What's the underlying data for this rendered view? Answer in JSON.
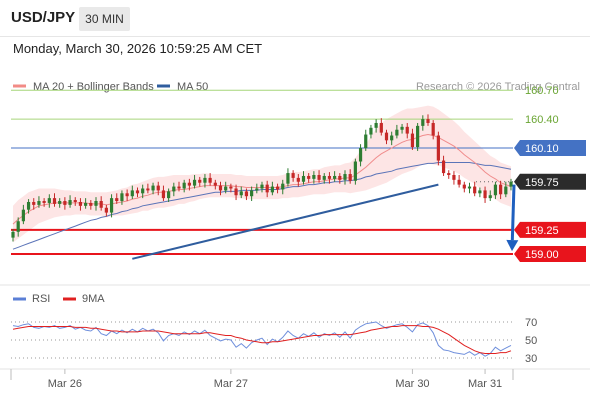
{
  "header": {
    "symbol": "USD/JPY",
    "timeframe": "30 MIN",
    "datetime": "Monday, March 30, 2026 10:59:25 AM CET"
  },
  "legend": {
    "items": [
      {
        "label": "MA 20 + Bollinger Bands",
        "color": "#f28b86"
      },
      {
        "label": "MA 50",
        "color": "#2f5d9e"
      }
    ],
    "credit": "Research © 2026 Trading Central"
  },
  "rsi_legend": {
    "items": [
      {
        "label": "RSI",
        "color": "#5b7fd6"
      },
      {
        "label": "9MA",
        "color": "#e02020"
      }
    ]
  },
  "colors": {
    "up_candle": "#2e7d32",
    "down_candle": "#c62828",
    "resistance_green": "#a6d57a",
    "pivot_blue": "#4472c4",
    "support_red": "#e8141c",
    "last_price": "#2b2b2b",
    "trendline": "#2f5d9e",
    "bollinger_fill": "#fde2e2",
    "ma50": "#5b74b8",
    "ma20": "#f08c8c"
  },
  "chart_data": [
    {
      "type": "candlestick",
      "x_ticks": [
        "Mar 26",
        "Mar 27",
        "Mar 30",
        "Mar 31"
      ],
      "ylim": [
        158.95,
        160.8
      ],
      "levels": [
        {
          "value": 160.7,
          "label": "160.70",
          "kind": "resistance"
        },
        {
          "value": 160.4,
          "label": "160.40",
          "kind": "resistance"
        },
        {
          "value": 160.1,
          "label": "160.10",
          "kind": "pivot"
        },
        {
          "value": 159.75,
          "label": "159.75",
          "kind": "last"
        },
        {
          "value": 159.25,
          "label": "159.25",
          "kind": "support"
        },
        {
          "value": 159.0,
          "label": "159.00",
          "kind": "support"
        }
      ],
      "closes": [
        159.23,
        159.34,
        159.46,
        159.54,
        159.51,
        159.55,
        159.53,
        159.58,
        159.52,
        159.55,
        159.51,
        159.56,
        159.54,
        159.5,
        159.53,
        159.5,
        159.55,
        159.48,
        159.43,
        159.58,
        159.55,
        159.63,
        159.6,
        159.66,
        159.63,
        159.68,
        159.66,
        159.71,
        159.66,
        159.58,
        159.65,
        159.7,
        159.68,
        159.74,
        159.71,
        159.77,
        159.74,
        159.79,
        159.74,
        159.71,
        159.66,
        159.7,
        159.68,
        159.61,
        159.65,
        159.6,
        159.66,
        159.68,
        159.72,
        159.64,
        159.7,
        159.67,
        159.73,
        159.84,
        159.79,
        159.75,
        159.81,
        159.78,
        159.82,
        159.77,
        159.81,
        159.78,
        159.81,
        159.77,
        159.83,
        159.76,
        159.96,
        160.1,
        160.24,
        160.31,
        160.36,
        160.26,
        160.18,
        160.23,
        160.29,
        160.32,
        160.25,
        160.11,
        160.33,
        160.4,
        160.36,
        160.23,
        159.97,
        159.84,
        159.82,
        159.77,
        159.72,
        159.68,
        159.7,
        159.63,
        159.66,
        159.58,
        159.61,
        159.72,
        159.62,
        159.7,
        159.75
      ],
      "ma20": [
        159.31,
        159.36,
        159.4,
        159.44,
        159.47,
        159.5,
        159.51,
        159.52,
        159.53,
        159.53,
        159.53,
        159.53,
        159.53,
        159.53,
        159.53,
        159.52,
        159.52,
        159.52,
        159.51,
        159.52,
        159.53,
        159.54,
        159.55,
        159.57,
        159.58,
        159.6,
        159.61,
        159.63,
        159.64,
        159.64,
        159.65,
        159.66,
        159.67,
        159.67,
        159.68,
        159.69,
        159.7,
        159.71,
        159.71,
        159.71,
        159.71,
        159.71,
        159.71,
        159.7,
        159.7,
        159.69,
        159.69,
        159.69,
        159.69,
        159.69,
        159.69,
        159.69,
        159.7,
        159.71,
        159.72,
        159.72,
        159.73,
        159.74,
        159.75,
        159.75,
        159.76,
        159.77,
        159.78,
        159.78,
        159.79,
        159.79,
        159.82,
        159.86,
        159.9,
        159.95,
        160.0,
        160.04,
        160.07,
        160.1,
        160.13,
        160.16,
        160.18,
        160.19,
        160.21,
        160.23,
        160.24,
        160.23,
        160.21,
        160.18,
        160.15,
        160.12,
        160.08,
        160.03,
        159.99,
        159.95,
        159.9,
        159.85,
        159.81,
        159.78,
        159.74,
        159.72,
        159.7
      ],
      "ma50": [
        159.05,
        159.07,
        159.09,
        159.11,
        159.13,
        159.15,
        159.17,
        159.19,
        159.21,
        159.23,
        159.25,
        159.27,
        159.29,
        159.31,
        159.33,
        159.35,
        159.36,
        159.38,
        159.39,
        159.41,
        159.42,
        159.44,
        159.45,
        159.47,
        159.48,
        159.5,
        159.51,
        159.52,
        159.53,
        159.54,
        159.55,
        159.56,
        159.57,
        159.58,
        159.59,
        159.6,
        159.61,
        159.62,
        159.63,
        159.64,
        159.64,
        159.65,
        159.65,
        159.65,
        159.66,
        159.66,
        159.66,
        159.66,
        159.67,
        159.67,
        159.67,
        159.67,
        159.68,
        159.69,
        159.7,
        159.7,
        159.71,
        159.72,
        159.72,
        159.73,
        159.74,
        159.74,
        159.75,
        159.75,
        159.76,
        159.76,
        159.77,
        159.78,
        159.8,
        159.81,
        159.83,
        159.84,
        159.85,
        159.86,
        159.88,
        159.89,
        159.9,
        159.91,
        159.92,
        159.93,
        159.94,
        159.94,
        159.95,
        159.95,
        159.95,
        159.95,
        159.95,
        159.95,
        159.95,
        159.94,
        159.93,
        159.92,
        159.92,
        159.91,
        159.9,
        159.89,
        159.88
      ],
      "bb_width": [
        0.19,
        0.2,
        0.2,
        0.2,
        0.19,
        0.18,
        0.17,
        0.16,
        0.15,
        0.14,
        0.13,
        0.13,
        0.12,
        0.12,
        0.12,
        0.12,
        0.12,
        0.12,
        0.13,
        0.13,
        0.13,
        0.14,
        0.14,
        0.15,
        0.15,
        0.15,
        0.16,
        0.16,
        0.16,
        0.16,
        0.16,
        0.16,
        0.15,
        0.15,
        0.14,
        0.14,
        0.13,
        0.13,
        0.12,
        0.12,
        0.12,
        0.12,
        0.12,
        0.12,
        0.12,
        0.12,
        0.12,
        0.12,
        0.12,
        0.12,
        0.12,
        0.12,
        0.12,
        0.13,
        0.13,
        0.13,
        0.13,
        0.13,
        0.13,
        0.13,
        0.14,
        0.14,
        0.14,
        0.14,
        0.15,
        0.16,
        0.18,
        0.21,
        0.24,
        0.27,
        0.3,
        0.32,
        0.33,
        0.33,
        0.33,
        0.33,
        0.33,
        0.32,
        0.31,
        0.3,
        0.3,
        0.3,
        0.29,
        0.28,
        0.27,
        0.26,
        0.25,
        0.24,
        0.23,
        0.22,
        0.22,
        0.22,
        0.21,
        0.21,
        0.21,
        0.21,
        0.21
      ],
      "forecast_arrow": {
        "from": 159.72,
        "to": 159.03
      },
      "trendline": {
        "from": 158.95,
        "to": 159.72
      }
    },
    {
      "type": "line",
      "name": "RSI",
      "ylim": [
        20,
        80
      ],
      "y_ticks": [
        70,
        50,
        30
      ],
      "rsi": [
        66,
        65,
        67,
        68,
        64,
        63,
        65,
        64,
        66,
        63,
        64,
        66,
        62,
        64,
        61,
        60,
        64,
        57,
        55,
        60,
        57,
        61,
        58,
        62,
        59,
        63,
        60,
        62,
        58,
        49,
        55,
        57,
        55,
        59,
        56,
        60,
        57,
        61,
        55,
        52,
        49,
        51,
        50,
        42,
        46,
        41,
        47,
        50,
        52,
        45,
        51,
        48,
        53,
        60,
        55,
        52,
        57,
        54,
        58,
        53,
        57,
        55,
        58,
        53,
        59,
        52,
        61,
        65,
        68,
        69,
        70,
        66,
        63,
        65,
        67,
        68,
        64,
        59,
        67,
        69,
        66,
        58,
        44,
        39,
        38,
        36,
        35,
        34,
        37,
        33,
        36,
        32,
        35,
        42,
        38,
        41,
        44
      ],
      "ma9": [
        62,
        63,
        64,
        65,
        65,
        65,
        65,
        65,
        65,
        65,
        65,
        65,
        64,
        64,
        64,
        63,
        63,
        62,
        61,
        60,
        60,
        59,
        59,
        59,
        59,
        60,
        60,
        60,
        60,
        59,
        58,
        57,
        57,
        57,
        57,
        57,
        57,
        58,
        58,
        57,
        56,
        55,
        55,
        53,
        52,
        50,
        49,
        48,
        47,
        47,
        48,
        48,
        49,
        50,
        51,
        52,
        53,
        54,
        55,
        55,
        56,
        56,
        56,
        56,
        56,
        56,
        57,
        58,
        59,
        61,
        62,
        63,
        64,
        65,
        65,
        66,
        66,
        66,
        66,
        65,
        65,
        64,
        62,
        59,
        56,
        52,
        48,
        44,
        41,
        38,
        36,
        35,
        35,
        35,
        36,
        36,
        38
      ]
    }
  ]
}
